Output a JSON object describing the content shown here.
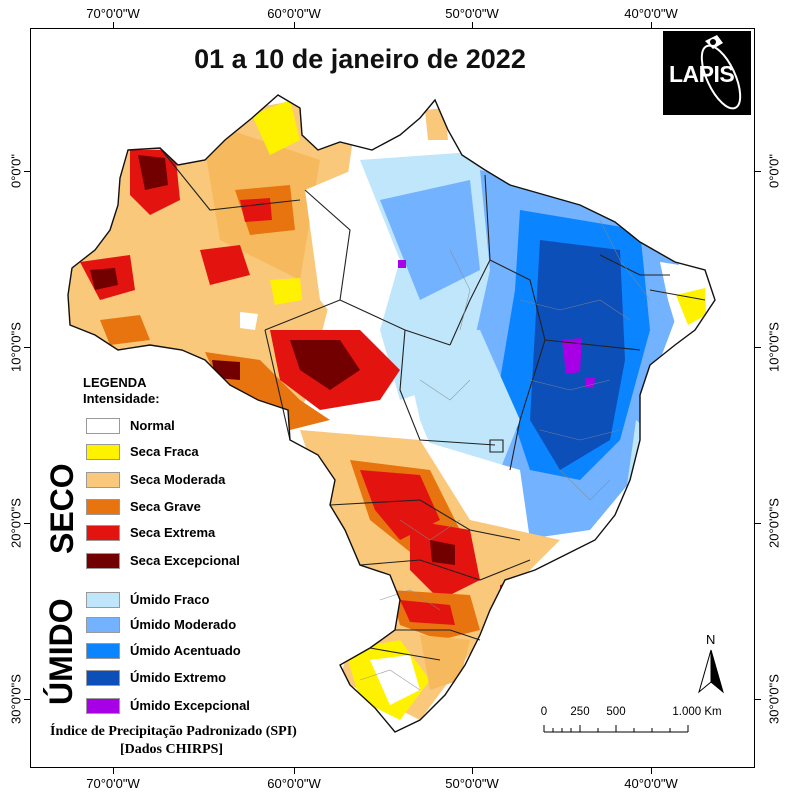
{
  "title": "01 a 10 de janeiro de 2022",
  "logo": {
    "text": "LAPIS"
  },
  "coordinates": {
    "longitudes": [
      "70°0'0\"W",
      "60°0'0\"W",
      "50°0'0\"W",
      "40°0'0\"W"
    ],
    "latitudes": [
      "0°0'0\"",
      "10°0'0\"S",
      "20°0'0\"S",
      "30°0'0\"S"
    ]
  },
  "legend": {
    "title_line1": "LEGENDA",
    "title_line2": "Intensidade:",
    "normal": {
      "label": "Normal",
      "color": "#ffffff"
    },
    "dry_group_label": "SECO",
    "wet_group_label": "ÚMIDO",
    "dry": [
      {
        "label": "Seca Fraca",
        "color": "#fff200"
      },
      {
        "label": "Seca Moderada",
        "color": "#f9c87a"
      },
      {
        "label": "Seca Grave",
        "color": "#e8740f"
      },
      {
        "label": "Seca Extrema",
        "color": "#e3130f"
      },
      {
        "label": "Seca Excepcional",
        "color": "#730000"
      }
    ],
    "wet": [
      {
        "label": "Úmido Fraco",
        "color": "#bfe6fb"
      },
      {
        "label": "Úmido Moderado",
        "color": "#73b2ff"
      },
      {
        "label": "Úmido Acentuado",
        "color": "#0a84ff"
      },
      {
        "label": "Úmido Extremo",
        "color": "#0c4fb8"
      },
      {
        "label": "Úmido Excepcional",
        "color": "#a800e6"
      }
    ]
  },
  "index_line1": "Índice de Precipitação Padronizado (SPI)",
  "index_line2": "[Dados CHIRPS]",
  "north_arrow_label": "N",
  "scale_bar": {
    "labels": [
      "0",
      "250",
      "500",
      "1.000 Km"
    ]
  }
}
